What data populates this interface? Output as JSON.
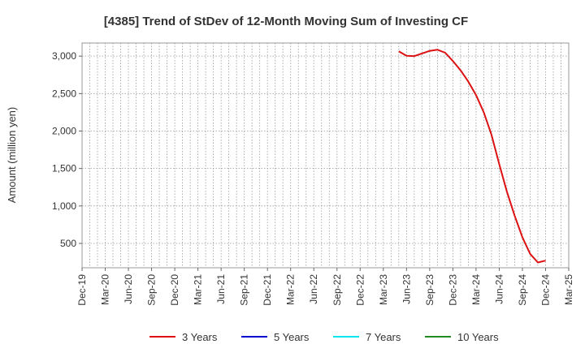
{
  "chart_data": {
    "type": "line",
    "title": "[4385]  Trend of StDev of 12-Month Moving Sum of Investing CF",
    "xlabel": "",
    "ylabel": "Amount (million yen)",
    "x_ticks": [
      "Dec-19",
      "Mar-20",
      "Jun-20",
      "Sep-20",
      "Dec-20",
      "Mar-21",
      "Jun-21",
      "Sep-21",
      "Dec-21",
      "Mar-22",
      "Jun-22",
      "Sep-22",
      "Dec-22",
      "Mar-23",
      "Jun-23",
      "Sep-23",
      "Dec-23",
      "Mar-24",
      "Jun-24",
      "Sep-24",
      "Dec-24",
      "Mar-25"
    ],
    "y_ticks": [
      500,
      1000,
      1500,
      2000,
      2500,
      3000
    ],
    "y_tick_labels": [
      "500",
      "1,000",
      "1,500",
      "2,000",
      "2,500",
      "3,000"
    ],
    "ylim": [
      175,
      3175
    ],
    "grid": true,
    "legend_position": "bottom",
    "series": [
      {
        "name": "3 Years",
        "color": "#dd1111",
        "x": [
          "May-23",
          "Jun-23",
          "Jul-23",
          "Aug-23",
          "Sep-23",
          "Oct-23",
          "Nov-23",
          "Dec-23",
          "Jan-24",
          "Feb-24",
          "Mar-24",
          "Apr-24",
          "May-24",
          "Jun-24",
          "Jul-24",
          "Aug-24",
          "Sep-24",
          "Oct-24",
          "Nov-24",
          "Dec-24",
          "Jan-25"
        ],
        "values": [
          3065,
          3005,
          3000,
          3035,
          3070,
          3085,
          3045,
          2935,
          2810,
          2660,
          2480,
          2250,
          1950,
          1560,
          1190,
          870,
          580,
          360,
          245,
          270,
          null
        ]
      },
      {
        "name": "5 Years",
        "color": "#0000cc",
        "x": [],
        "values": []
      },
      {
        "name": "7 Years",
        "color": "#00e5ee",
        "x": [],
        "values": []
      },
      {
        "name": "10 Years",
        "color": "#228b22",
        "x": [],
        "values": []
      }
    ]
  }
}
